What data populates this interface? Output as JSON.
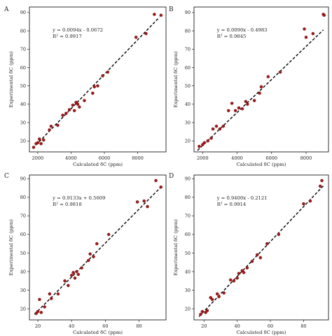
{
  "chart_data": [
    {
      "type": "scatter",
      "panel_label": "A",
      "xlabel": "Calculated δC (ppm)",
      "ylabel": "Experimental δC (ppm)",
      "xlim": [
        1500,
        9700
      ],
      "ylim": [
        14,
        93
      ],
      "xticks": [
        "2000",
        "4000",
        "6000",
        "8000"
      ],
      "xtick_values": [
        2000,
        4000,
        6000,
        8000
      ],
      "yticks": [
        "20",
        "30",
        "40",
        "50",
        "60",
        "70",
        "80",
        "90"
      ],
      "ytick_values": [
        20,
        30,
        40,
        50,
        60,
        70,
        80,
        90
      ],
      "equation": "y = 0.0094x - 0.0672",
      "r2": "R² = 0.9917",
      "fit": {
        "slope": 0.0094,
        "intercept": -0.0672
      },
      "points": [
        [
          1750,
          16.5
        ],
        [
          1900,
          18.5
        ],
        [
          2000,
          19.0
        ],
        [
          2100,
          21.0
        ],
        [
          2200,
          18.5
        ],
        [
          2350,
          20.5
        ],
        [
          2700,
          26.0
        ],
        [
          2800,
          28.0
        ],
        [
          3200,
          28.5
        ],
        [
          3500,
          34.0
        ],
        [
          3700,
          35.0
        ],
        [
          3900,
          37.0
        ],
        [
          4100,
          39.5
        ],
        [
          4200,
          36.5
        ],
        [
          4300,
          41.0
        ],
        [
          4400,
          40.0
        ],
        [
          4500,
          38.5
        ],
        [
          4800,
          42.0
        ],
        [
          5300,
          46.0
        ],
        [
          5400,
          49.5
        ],
        [
          5600,
          50.0
        ],
        [
          5900,
          55.5
        ],
        [
          6200,
          57.5
        ],
        [
          7900,
          76.5
        ],
        [
          8500,
          78.5
        ],
        [
          9000,
          89.0
        ],
        [
          9400,
          88.5
        ]
      ]
    },
    {
      "type": "scatter",
      "panel_label": "B",
      "xlabel": "Calculated δC (ppm)",
      "ylabel": "Experimental δC (ppm)",
      "xlim": [
        1500,
        9300
      ],
      "ylim": [
        14,
        93
      ],
      "xticks": [
        "2000",
        "4000",
        "6000",
        "8000"
      ],
      "xtick_values": [
        2000,
        4000,
        6000,
        8000
      ],
      "yticks": [
        "20",
        "30",
        "40",
        "50",
        "60",
        "70",
        "80",
        "90"
      ],
      "ytick_values": [
        20,
        30,
        40,
        50,
        60,
        70,
        80,
        90
      ],
      "equation": "y = 0.0090x - 0.4983",
      "r2": "R² = 0.9845",
      "fit": {
        "slope": 0.009,
        "intercept": -0.4983
      },
      "points": [
        [
          1800,
          17.0
        ],
        [
          2000,
          18.0
        ],
        [
          2100,
          19.0
        ],
        [
          2300,
          20.0
        ],
        [
          2500,
          21.5
        ],
        [
          2600,
          26.5
        ],
        [
          2800,
          28.0
        ],
        [
          3000,
          26.5
        ],
        [
          3200,
          28.0
        ],
        [
          3500,
          36.5
        ],
        [
          3700,
          40.5
        ],
        [
          3900,
          36.5
        ],
        [
          4100,
          38.0
        ],
        [
          4300,
          37.5
        ],
        [
          4500,
          41.5
        ],
        [
          4600,
          40.0
        ],
        [
          5000,
          42.0
        ],
        [
          5300,
          46.0
        ],
        [
          5400,
          49.5
        ],
        [
          5800,
          55.0
        ],
        [
          6500,
          57.5
        ],
        [
          7900,
          81.0
        ],
        [
          8000,
          76.5
        ],
        [
          8400,
          78.5
        ],
        [
          9000,
          89.0
        ],
        [
          9050,
          88.5
        ]
      ]
    },
    {
      "type": "scatter",
      "panel_label": "C",
      "xlabel": "Calculated δC (ppm)",
      "ylabel": "Experimental δC (ppm)",
      "xlim": [
        15,
        96
      ],
      "ylim": [
        14,
        92
      ],
      "xticks": [
        "20",
        "40",
        "60",
        "80"
      ],
      "xtick_values": [
        20,
        40,
        60,
        80
      ],
      "yticks": [
        "20",
        "30",
        "40",
        "50",
        "60",
        "70",
        "80",
        "90"
      ],
      "ytick_values": [
        20,
        30,
        40,
        50,
        60,
        70,
        80,
        90
      ],
      "equation": "y = 0.9133x + 0.5609",
      "r2": "R² = 0.9818",
      "fit": {
        "slope": 0.9133,
        "intercept": 0.5609
      },
      "points": [
        [
          19,
          17.5
        ],
        [
          20,
          18.5
        ],
        [
          21,
          25.0
        ],
        [
          22,
          18.0
        ],
        [
          24,
          21.0
        ],
        [
          27,
          28.0
        ],
        [
          28,
          25.5
        ],
        [
          32,
          28.0
        ],
        [
          36,
          35.0
        ],
        [
          38,
          32.5
        ],
        [
          40,
          38.0
        ],
        [
          41,
          39.5
        ],
        [
          42,
          36.5
        ],
        [
          43,
          40.0
        ],
        [
          44,
          38.5
        ],
        [
          46,
          42.0
        ],
        [
          50,
          46.0
        ],
        [
          51,
          49.5
        ],
        [
          53,
          48.0
        ],
        [
          55,
          55.0
        ],
        [
          62,
          60.0
        ],
        [
          79,
          77.5
        ],
        [
          83,
          78.0
        ],
        [
          85,
          75.0
        ],
        [
          90,
          89.0
        ],
        [
          93,
          85.5
        ]
      ]
    },
    {
      "type": "scatter",
      "panel_label": "D",
      "xlabel": "Calculated δC (ppm)",
      "ylabel": "Experimental δC (ppm)",
      "xlim": [
        14,
        95
      ],
      "ylim": [
        14,
        92
      ],
      "xticks": [
        "20",
        "40",
        "60",
        "80"
      ],
      "xtick_values": [
        20,
        40,
        60,
        80
      ],
      "yticks": [
        "20",
        "30",
        "40",
        "50",
        "60",
        "70",
        "80",
        "90"
      ],
      "ytick_values": [
        20,
        30,
        40,
        50,
        60,
        70,
        80,
        90
      ],
      "equation": "y = 0.9400x - 0.2121",
      "r2": "R² = 0.9914",
      "fit": {
        "slope": 0.94,
        "intercept": -0.2121
      },
      "points": [
        [
          18,
          17.0
        ],
        [
          19,
          18.5
        ],
        [
          21,
          18.0
        ],
        [
          22,
          19.0
        ],
        [
          24,
          26.0
        ],
        [
          25,
          25.0
        ],
        [
          28,
          28.0
        ],
        [
          29,
          26.5
        ],
        [
          32,
          28.5
        ],
        [
          36,
          35.5
        ],
        [
          38,
          35.0
        ],
        [
          40,
          36.5
        ],
        [
          41,
          39.0
        ],
        [
          43,
          40.5
        ],
        [
          44,
          39.5
        ],
        [
          46,
          42.0
        ],
        [
          49,
          45.5
        ],
        [
          52,
          49.0
        ],
        [
          54,
          47.5
        ],
        [
          58,
          55.0
        ],
        [
          65,
          60.0
        ],
        [
          80,
          76.5
        ],
        [
          84,
          78.0
        ],
        [
          90,
          86.0
        ],
        [
          91,
          89.0
        ]
      ]
    }
  ]
}
